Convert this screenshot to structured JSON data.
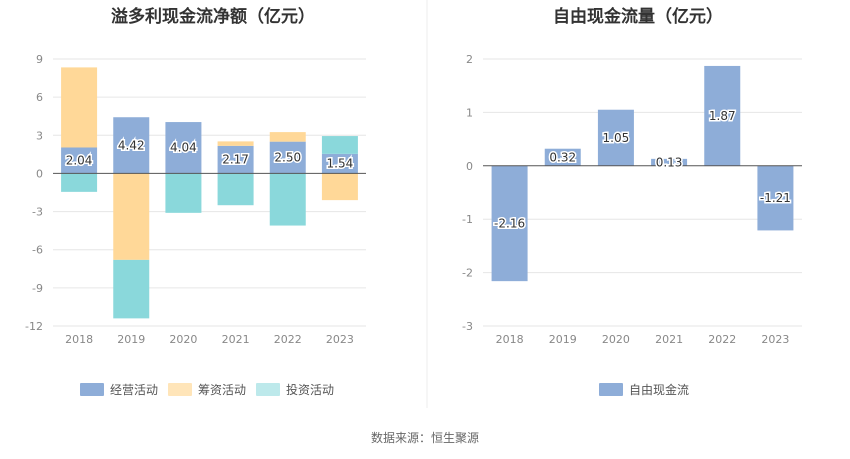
{
  "source": "数据来源：恒生聚源",
  "chart_data": [
    {
      "type": "bar",
      "stacked": true,
      "title": "溢多利现金流净额（亿元）",
      "categories": [
        "2018",
        "2019",
        "2020",
        "2021",
        "2022",
        "2023"
      ],
      "ylim": [
        -12,
        9
      ],
      "yticks": [
        9,
        6,
        3,
        0,
        -3,
        -6,
        -9,
        -12
      ],
      "series": [
        {
          "name": "经营活动",
          "color": "#8eadd8",
          "values": [
            2.04,
            4.42,
            4.04,
            2.17,
            2.5,
            1.54
          ],
          "labels": [
            "2.04",
            "4.42",
            "4.04",
            "2.17",
            "2.50",
            "1.54"
          ]
        },
        {
          "name": "筹资活动",
          "color": "#ffd898",
          "values": [
            6.3,
            -6.8,
            0.0,
            0.35,
            0.75,
            -2.1
          ]
        },
        {
          "name": "投资活动",
          "color": "#8ad8db",
          "values": [
            -1.45,
            -4.6,
            -3.1,
            -2.5,
            -4.1,
            1.4
          ]
        }
      ],
      "legend": [
        "经营活动",
        "筹资活动",
        "投资活动"
      ],
      "legend_colors": [
        "#8eadd8",
        "#ffe5b9",
        "#bde9eb"
      ]
    },
    {
      "type": "bar",
      "title": "自由现金流量（亿元）",
      "categories": [
        "2018",
        "2019",
        "2020",
        "2021",
        "2022",
        "2023"
      ],
      "ylim": [
        -3,
        2
      ],
      "yticks": [
        2,
        1,
        0,
        -1,
        -2,
        -3
      ],
      "series": [
        {
          "name": "自由现金流",
          "color": "#8eadd8",
          "values": [
            -2.16,
            0.32,
            1.05,
            0.13,
            1.87,
            -1.21
          ],
          "labels": [
            "-2.16",
            "0.32",
            "1.05",
            "0.13",
            "1.87",
            "-1.21"
          ]
        }
      ],
      "legend": [
        "自由现金流"
      ],
      "legend_colors": [
        "#8eadd8"
      ]
    }
  ]
}
